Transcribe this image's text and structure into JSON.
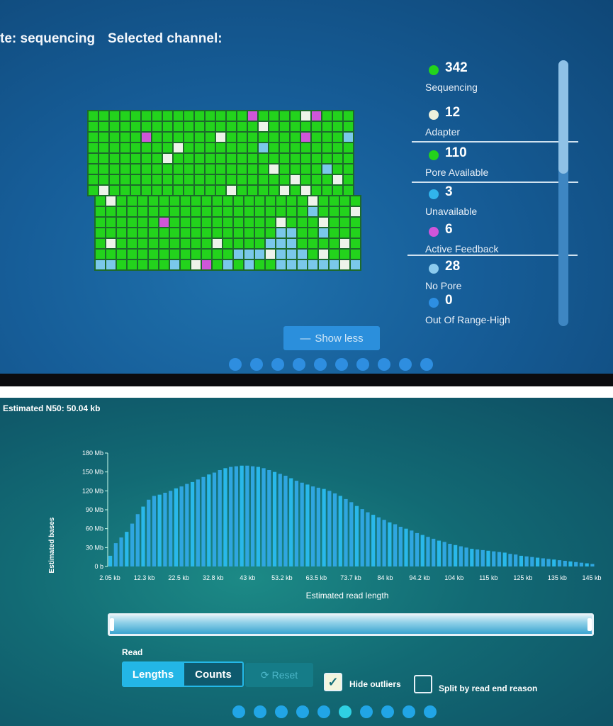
{
  "header": {
    "state_text": "te: sequencing",
    "selected_channel_label": "Selected channel:"
  },
  "channel_grid": {
    "blocks": [
      {
        "rows": 8,
        "cols": 25,
        "marks": [
          [
            0,
            15,
            "feedback"
          ],
          [
            0,
            20,
            "adapter"
          ],
          [
            0,
            21,
            "feedback"
          ],
          [
            1,
            16,
            "adapter"
          ],
          [
            2,
            5,
            "feedback"
          ],
          [
            2,
            12,
            "adapter"
          ],
          [
            2,
            20,
            "feedback"
          ],
          [
            2,
            24,
            "nopore"
          ],
          [
            3,
            8,
            "adapter"
          ],
          [
            3,
            16,
            "nopore"
          ],
          [
            4,
            7,
            "adapter"
          ],
          [
            5,
            17,
            "adapter"
          ],
          [
            5,
            22,
            "nopore"
          ],
          [
            6,
            19,
            "adapter"
          ],
          [
            6,
            23,
            "adapter"
          ],
          [
            7,
            1,
            "adapter"
          ],
          [
            7,
            13,
            "adapter"
          ],
          [
            7,
            18,
            "adapter"
          ],
          [
            7,
            20,
            "adapter"
          ]
        ]
      },
      {
        "rows": 7,
        "cols": 25,
        "marks": [
          [
            0,
            1,
            "adapter"
          ],
          [
            0,
            20,
            "adapter"
          ],
          [
            1,
            20,
            "nopore"
          ],
          [
            1,
            24,
            "adapter"
          ],
          [
            2,
            6,
            "feedback"
          ],
          [
            2,
            17,
            "adapter"
          ],
          [
            2,
            21,
            "adapter"
          ],
          [
            3,
            17,
            "nopore"
          ],
          [
            3,
            18,
            "nopore"
          ],
          [
            3,
            21,
            "nopore"
          ],
          [
            3,
            26,
            "adapter"
          ],
          [
            4,
            1,
            "adapter"
          ],
          [
            4,
            11,
            "adapter"
          ],
          [
            4,
            16,
            "nopore"
          ],
          [
            4,
            17,
            "nopore"
          ],
          [
            4,
            18,
            "nopore"
          ],
          [
            4,
            23,
            "adapter"
          ],
          [
            5,
            13,
            "nopore"
          ],
          [
            5,
            14,
            "nopore"
          ],
          [
            5,
            15,
            "nopore"
          ],
          [
            5,
            16,
            "adapter"
          ],
          [
            5,
            17,
            "nopore"
          ],
          [
            5,
            18,
            "nopore"
          ],
          [
            5,
            19,
            "nopore"
          ],
          [
            5,
            21,
            "adapter"
          ],
          [
            6,
            7,
            "nopore"
          ],
          [
            6,
            9,
            "adapter"
          ],
          [
            6,
            10,
            "feedback"
          ],
          [
            6,
            14,
            "nopore"
          ],
          [
            6,
            20,
            "nopore"
          ],
          [
            6,
            22,
            "nopore"
          ],
          [
            6,
            23,
            "adapter"
          ],
          [
            6,
            0,
            "nopore"
          ],
          [
            6,
            1,
            "nopore"
          ],
          [
            6,
            12,
            "nopore"
          ],
          [
            6,
            17,
            "nopore"
          ],
          [
            6,
            18,
            "nopore"
          ],
          [
            6,
            19,
            "nopore"
          ],
          [
            6,
            21,
            "nopore"
          ],
          [
            6,
            22,
            "nopore"
          ],
          [
            6,
            24,
            "nopore"
          ]
        ]
      }
    ]
  },
  "legend": [
    {
      "count": "342",
      "label": "Sequencing",
      "color": "#23d31c"
    },
    {
      "count": "12",
      "label": "Adapter",
      "color": "#eef0dc"
    },
    {
      "count": "110",
      "label": "Pore Available",
      "color": "#23d31c"
    },
    {
      "count": "3",
      "label": "Unavailable",
      "color": "#31b4ec"
    },
    {
      "count": "6",
      "label": "Active Feedback",
      "color": "#d055da"
    },
    {
      "count": "28",
      "label": "No Pore",
      "color": "#8ccbee"
    },
    {
      "count": "0",
      "label": "Out Of Range-High",
      "color": "#2d8fe3"
    }
  ],
  "show_less_label": "Show less",
  "n50_text": "Estimated N50: 50.04 kb",
  "chart_data": {
    "type": "bar",
    "ylabel": "Estimated bases",
    "xlabel": "Estimated read length",
    "y_ticks": [
      "0 b",
      "30 Mb",
      "60 Mb",
      "90 Mb",
      "120 Mb",
      "150 Mb",
      "180 Mb"
    ],
    "ylim": [
      0,
      180
    ],
    "x_tick_labels": [
      "2.05 kb",
      "12.3 kb",
      "22.5 kb",
      "32.8 kb",
      "43 kb",
      "53.2 kb",
      "63.5 kb",
      "73.7 kb",
      "84 kb",
      "94.2 kb",
      "104 kb",
      "115 kb",
      "125 kb",
      "135 kb",
      "145 kb"
    ],
    "values_mb": [
      17,
      37,
      46,
      55,
      68,
      83,
      95,
      106,
      112,
      114,
      117,
      120,
      124,
      127,
      131,
      134,
      138,
      142,
      146,
      149,
      153,
      156,
      158,
      159,
      160,
      160,
      159,
      158,
      156,
      153,
      150,
      147,
      144,
      140,
      136,
      133,
      130,
      127,
      125,
      123,
      120,
      116,
      112,
      107,
      102,
      96,
      91,
      86,
      82,
      78,
      74,
      70,
      67,
      63,
      60,
      57,
      53,
      50,
      47,
      44,
      41,
      39,
      36,
      34,
      32,
      30,
      28,
      27,
      26,
      25,
      24,
      23,
      22,
      20,
      19,
      17,
      16,
      15,
      14,
      13,
      12,
      11,
      10,
      9,
      8,
      7,
      6,
      5,
      4
    ]
  },
  "controls": {
    "read_label": "Read",
    "lengths_label": "Lengths",
    "counts_label": "Counts",
    "reset_label": "Reset",
    "hide_outliers_label": "Hide outliers",
    "split_label": "Split by read end reason"
  },
  "top_pager_count": 10,
  "bottom_pager_count": 10
}
